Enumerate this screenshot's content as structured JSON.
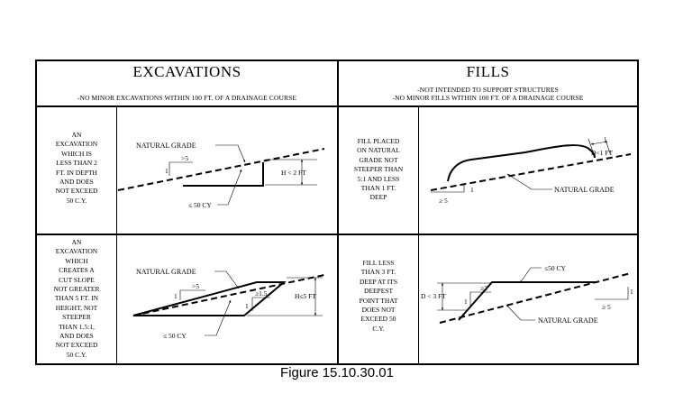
{
  "excavations": {
    "title": "EXCAVATIONS",
    "subtitle": "-NO MINOR EXCAVATIONS WITHIN 100 FT. OF A DRAINAGE COURSE",
    "case1": {
      "description": [
        "AN",
        "EXCAVATION",
        "WHICH IS",
        "LESS THAN 2",
        "FT. IN DEPTH",
        "AND DOES",
        "NOT EXCEED",
        "50 C.Y."
      ],
      "labels": {
        "natural_grade": "NATURAL GRADE",
        "slope_run": ">5",
        "slope_rise": "1",
        "height": "H < 2 FT",
        "volume": "≤ 50 CY"
      }
    },
    "case2": {
      "description": [
        "AN",
        "EXCAVATION",
        "WHICH",
        "CREATES A",
        "CUT SLOPE",
        "NOT GREATER",
        "THAN 5 FT. IN",
        "HEIGHT, NOT",
        "STEEPER",
        "THAN 1.5:1,",
        "AND DOES",
        "NOT EXCEED",
        "50 C.Y."
      ],
      "labels": {
        "natural_grade": "NATURAL GRADE",
        "slope_run": ">5",
        "slope_rise": "1",
        "cut_run": "≥1.5",
        "cut_rise": "1",
        "height": "H≤5 FT",
        "volume": "≤ 50 CY"
      }
    }
  },
  "fills": {
    "title": "FILLS",
    "subtitle_1": "-NOT INTENDED TO SUPPORT STRUCTURES",
    "subtitle_2": "-NO MINOR FILLS WITHIN 100 FT. OF A DRAINAGE COURSE",
    "case1": {
      "description": [
        "FILL PLACED",
        "ON NATURAL",
        "GRADE NOT",
        "STEEPER THAN",
        "5:1 AND LESS",
        "THAN 1 FT.",
        "DEEP"
      ],
      "labels": {
        "depth": "D<1 FT",
        "natural_grade": "NATURAL GRADE",
        "slope_run": "≥ 5",
        "slope_rise": "1"
      }
    },
    "case2": {
      "description": [
        "FILL LESS",
        "THAN 3 FT.",
        "DEEP AT ITS",
        "DEEPEST",
        "POINT THAT",
        "DOES NOT",
        "EXCEED 50",
        "C.Y."
      ],
      "labels": {
        "volume": "≤50 CY",
        "depth": "D < 3 FT",
        "fill_run": "≥2",
        "fill_rise": "1",
        "slope_run": "≥ 5",
        "slope_rise": "1",
        "natural_grade": "NATURAL GRADE"
      }
    }
  },
  "caption": "Figure 15.10.30.01"
}
